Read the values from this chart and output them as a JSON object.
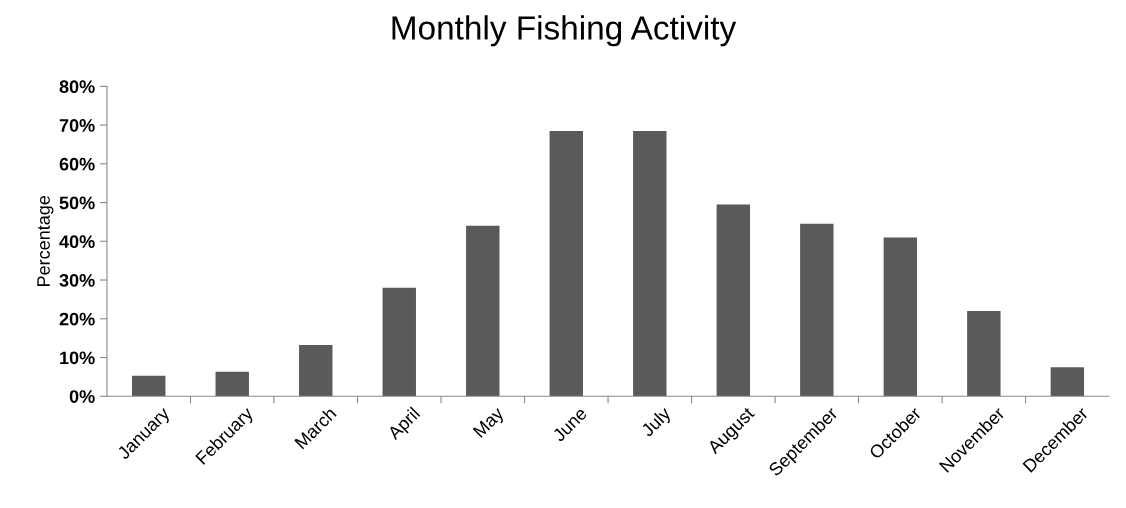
{
  "chart_data": {
    "type": "bar",
    "title": "Monthly Fishing Activity",
    "ylabel": "Percentage",
    "categories": [
      "January",
      "February",
      "March",
      "April",
      "May",
      "June",
      "July",
      "August",
      "September",
      "October",
      "November",
      "December"
    ],
    "values": [
      5.3,
      6.3,
      13.2,
      28,
      44,
      68.5,
      68.5,
      49.5,
      44.5,
      41,
      22,
      7.5
    ],
    "color": "#5a5a5a",
    "ylim": [
      0,
      80
    ],
    "yticks": [
      {
        "value": 0,
        "label": "0%"
      },
      {
        "value": 10,
        "label": "10%"
      },
      {
        "value": 20,
        "label": "20%"
      },
      {
        "value": 30,
        "label": "30%"
      },
      {
        "value": 40,
        "label": "40%"
      },
      {
        "value": 50,
        "label": "50%"
      },
      {
        "value": 60,
        "label": "60%"
      },
      {
        "value": 70,
        "label": "70%"
      },
      {
        "value": 80,
        "label": "80%"
      }
    ],
    "grid": false,
    "legend": false
  }
}
